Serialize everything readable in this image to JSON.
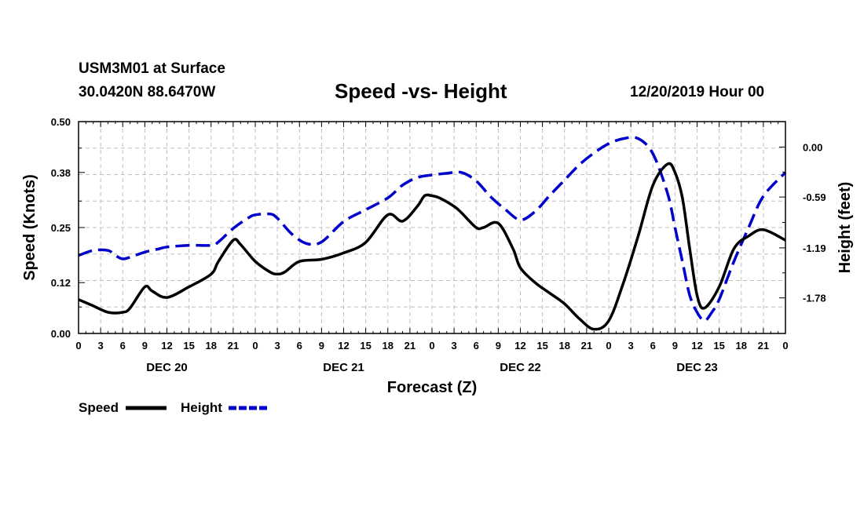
{
  "header": {
    "station": "USM3M01 at Surface",
    "coords": "30.0420N 88.6470W",
    "title": "Speed -vs- Height",
    "run_time": "12/20/2019 Hour 00"
  },
  "colors": {
    "speed": "#000000",
    "height": "#0000cc",
    "grid": "#bfbfbf"
  },
  "chart_data": {
    "type": "line",
    "title": "Speed -vs- Height",
    "xlabel": "Forecast (Z)",
    "ylabel_left": "Speed (Knots)",
    "ylabel_right": "Height (feet)",
    "x_unit": "forecast hour",
    "xlim": [
      0,
      96
    ],
    "x_ticks": [
      0,
      3,
      6,
      9,
      12,
      15,
      18,
      21,
      24,
      27,
      30,
      33,
      36,
      39,
      42,
      45,
      48,
      51,
      54,
      57,
      60,
      63,
      66,
      69,
      72,
      75,
      78,
      81,
      84,
      87,
      90,
      93,
      96
    ],
    "x_tick_labels": [
      "0",
      "3",
      "6",
      "9",
      "12",
      "15",
      "18",
      "21",
      "0",
      "3",
      "6",
      "9",
      "12",
      "15",
      "18",
      "21",
      "0",
      "3",
      "6",
      "9",
      "12",
      "15",
      "18",
      "21",
      "0",
      "3",
      "6",
      "9",
      "12",
      "15",
      "18",
      "21",
      "0"
    ],
    "day_labels": [
      {
        "label": "DEC 20",
        "hour": 12
      },
      {
        "label": "DEC 21",
        "hour": 36
      },
      {
        "label": "DEC 22",
        "hour": 60
      },
      {
        "label": "DEC 23",
        "hour": 84
      }
    ],
    "y_left_lim": [
      0,
      0.5
    ],
    "y_left_ticks": [
      0.0,
      0.12,
      0.25,
      0.38,
      0.5
    ],
    "y_left_tick_labels": [
      "0.00",
      "0.12",
      "0.25",
      "0.38",
      "0.50"
    ],
    "y_right_lim": [
      -2.2,
      0.3
    ],
    "y_right_ticks": [
      0.0,
      -0.59,
      -1.19,
      -1.78
    ],
    "y_right_tick_labels": [
      "0.00",
      "-0.59",
      "-1.19",
      "-1.78"
    ],
    "grid": true,
    "legend_position": "bottom-left",
    "series": [
      {
        "name": "Speed",
        "axis": "left",
        "style": "solid",
        "x": [
          0,
          2,
          4,
          6,
          7,
          9,
          10,
          12,
          15,
          18,
          19,
          21,
          22,
          24,
          26,
          27,
          28,
          30,
          33,
          36,
          39,
          42,
          44,
          46,
          47,
          48,
          49,
          51,
          52,
          54,
          55,
          57,
          59,
          60,
          62,
          64,
          66,
          68,
          70,
          72,
          74,
          76,
          78,
          80,
          81,
          82,
          83,
          84,
          85,
          87,
          89,
          91,
          93,
          96
        ],
        "values": [
          0.08,
          0.065,
          0.05,
          0.05,
          0.06,
          0.11,
          0.1,
          0.085,
          0.11,
          0.14,
          0.17,
          0.22,
          0.21,
          0.17,
          0.145,
          0.14,
          0.145,
          0.17,
          0.175,
          0.19,
          0.215,
          0.28,
          0.265,
          0.3,
          0.325,
          0.325,
          0.32,
          0.3,
          0.285,
          0.25,
          0.25,
          0.26,
          0.2,
          0.155,
          0.12,
          0.095,
          0.07,
          0.035,
          0.01,
          0.03,
          0.12,
          0.23,
          0.35,
          0.4,
          0.38,
          0.32,
          0.2,
          0.09,
          0.06,
          0.11,
          0.2,
          0.23,
          0.245,
          0.22
        ]
      },
      {
        "name": "Height",
        "axis": "right",
        "style": "dashed",
        "x": [
          0,
          2,
          4,
          5,
          6,
          7,
          9,
          11,
          12,
          15,
          18,
          19,
          21,
          23,
          24,
          26,
          27,
          29,
          31,
          33,
          36,
          39,
          42,
          44,
          46,
          48,
          50,
          52,
          54,
          56,
          58,
          60,
          62,
          64,
          66,
          68,
          70,
          72,
          74,
          76,
          78,
          80,
          81,
          82,
          83,
          84,
          85,
          86,
          87,
          89,
          91,
          93,
          96
        ],
        "values": [
          -1.28,
          -1.22,
          -1.22,
          -1.28,
          -1.32,
          -1.3,
          -1.24,
          -1.2,
          -1.18,
          -1.16,
          -1.16,
          -1.12,
          -0.96,
          -0.84,
          -0.8,
          -0.79,
          -0.84,
          -1.03,
          -1.14,
          -1.12,
          -0.88,
          -0.74,
          -0.6,
          -0.45,
          -0.36,
          -0.33,
          -0.31,
          -0.3,
          -0.4,
          -0.59,
          -0.74,
          -0.86,
          -0.76,
          -0.57,
          -0.39,
          -0.21,
          -0.07,
          0.04,
          0.1,
          0.1,
          -0.08,
          -0.55,
          -0.95,
          -1.35,
          -1.75,
          -1.95,
          -2.05,
          -1.95,
          -1.8,
          -1.35,
          -0.95,
          -0.58,
          -0.3
        ]
      }
    ]
  },
  "legend": {
    "speed_label": "Speed",
    "height_label": "Height"
  }
}
